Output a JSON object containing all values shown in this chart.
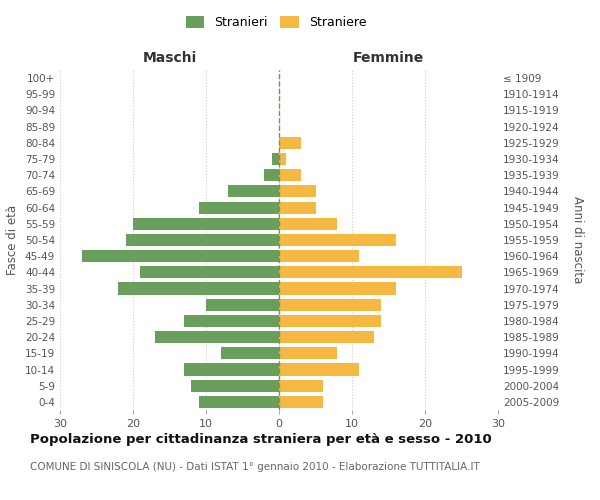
{
  "age_groups": [
    "0-4",
    "5-9",
    "10-14",
    "15-19",
    "20-24",
    "25-29",
    "30-34",
    "35-39",
    "40-44",
    "45-49",
    "50-54",
    "55-59",
    "60-64",
    "65-69",
    "70-74",
    "75-79",
    "80-84",
    "85-89",
    "90-94",
    "95-99",
    "100+"
  ],
  "birth_years": [
    "2005-2009",
    "2000-2004",
    "1995-1999",
    "1990-1994",
    "1985-1989",
    "1980-1984",
    "1975-1979",
    "1970-1974",
    "1965-1969",
    "1960-1964",
    "1955-1959",
    "1950-1954",
    "1945-1949",
    "1940-1944",
    "1935-1939",
    "1930-1934",
    "1925-1929",
    "1920-1924",
    "1915-1919",
    "1910-1914",
    "≤ 1909"
  ],
  "males": [
    11,
    12,
    13,
    8,
    17,
    13,
    10,
    22,
    19,
    27,
    21,
    20,
    11,
    7,
    2,
    1,
    0,
    0,
    0,
    0,
    0
  ],
  "females": [
    6,
    6,
    11,
    8,
    13,
    14,
    14,
    16,
    25,
    11,
    16,
    8,
    5,
    5,
    3,
    1,
    3,
    0,
    0,
    0,
    0
  ],
  "male_color": "#6a9e5c",
  "female_color": "#f5b942",
  "background_color": "#ffffff",
  "grid_color": "#cccccc",
  "title": "Popolazione per cittadinanza straniera per età e sesso - 2010",
  "subtitle": "COMUNE DI SINISCOLA (NU) - Dati ISTAT 1° gennaio 2010 - Elaborazione TUTTITALIA.IT",
  "xlabel_left": "Maschi",
  "xlabel_right": "Femmine",
  "ylabel_left": "Fasce di età",
  "ylabel_right": "Anni di nascita",
  "legend_males": "Stranieri",
  "legend_females": "Straniere",
  "xlim": 30,
  "xticks": [
    -30,
    -20,
    -10,
    0,
    10,
    20,
    30
  ]
}
